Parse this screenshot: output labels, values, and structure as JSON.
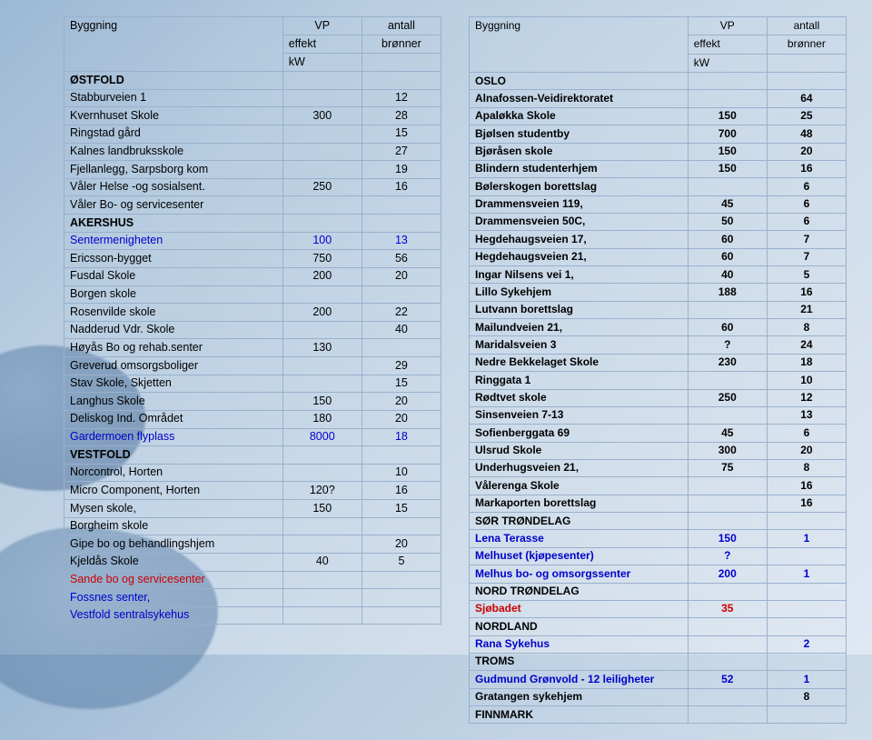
{
  "headers": {
    "byggning": "Byggning",
    "vp1": "VP",
    "vp2": "effekt",
    "vp3": "kW",
    "ant1": "antall",
    "ant2": "brønner"
  },
  "left": [
    {
      "name": "ØSTFOLD",
      "cls": "section"
    },
    {
      "name": "Stabburveien 1",
      "wells": "12"
    },
    {
      "name": "Kvernhuset Skole",
      "vp": "300",
      "wells": "28"
    },
    {
      "name": "Ringstad gård",
      "wells": "15"
    },
    {
      "name": "Kalnes landbruksskole",
      "wells": "27"
    },
    {
      "name": "Fjellanlegg, Sarpsborg kom",
      "wells": "19"
    },
    {
      "name": "Våler Helse -og sosialsent.",
      "vp": "250",
      "wells": "16"
    },
    {
      "name": "Våler Bo- og servicesenter"
    },
    {
      "name": "AKERSHUS",
      "cls": "section"
    },
    {
      "name": "Sentermenigheten",
      "vp": "100",
      "wells": "13",
      "cls": "blue"
    },
    {
      "name": "Ericsson-bygget",
      "vp": "750",
      "wells": "56"
    },
    {
      "name": "Fusdal Skole",
      "vp": "200",
      "wells": "20"
    },
    {
      "name": "Borgen skole"
    },
    {
      "name": "Rosenvilde skole",
      "vp": "200",
      "wells": "22"
    },
    {
      "name": "Nadderud Vdr. Skole",
      "wells": "40"
    },
    {
      "name": "Høyås Bo og rehab.senter",
      "vp": "130"
    },
    {
      "name": "Greverud omsorgsboliger",
      "wells": "29"
    },
    {
      "name": "Stav Skole, Skjetten",
      "wells": "15"
    },
    {
      "name": "Langhus Skole",
      "vp": "150",
      "wells": "20"
    },
    {
      "name": "Deliskog Ind. Området",
      "vp": "180",
      "wells": "20"
    },
    {
      "name": "Gardermoen flyplass",
      "vp": "8000",
      "wells": "18",
      "cls": "blue"
    },
    {
      "name": "VESTFOLD",
      "cls": "section"
    },
    {
      "name": "Norcontrol, Horten",
      "wells": "10"
    },
    {
      "name": "Micro Component, Horten",
      "vp": "120?",
      "wells": "16"
    },
    {
      "name": "Mysen skole,",
      "vp": "150",
      "wells": "15"
    },
    {
      "name": "Borgheim skole"
    },
    {
      "name": "Gipe bo og behandlingshjem",
      "wells": "20"
    },
    {
      "name": "Kjeldås Skole",
      "vp": "40",
      "wells": "5"
    },
    {
      "name": "Sande bo og servicesenter",
      "cls": "red"
    },
    {
      "name": "Fossnes senter,",
      "cls": "blue"
    },
    {
      "name": "Vestfold sentralsykehus",
      "cls": "blue"
    }
  ],
  "right": [
    {
      "name": "OSLO",
      "cls": "bold"
    },
    {
      "name": "Alnafossen-Veidirektoratet",
      "wells": "64",
      "cls": "bold"
    },
    {
      "name": "Apaløkka Skole",
      "vp": "150",
      "wells": "25",
      "cls": "bold"
    },
    {
      "name": "Bjølsen studentby",
      "vp": "700",
      "wells": "48",
      "cls": "bold"
    },
    {
      "name": "Bjøråsen skole",
      "vp": "150",
      "wells": "20",
      "cls": "bold"
    },
    {
      "name": "Blindern studenterhjem",
      "vp": "150",
      "wells": "16",
      "cls": "bold"
    },
    {
      "name": "Bølerskogen borettslag",
      "wells": "6",
      "cls": "bold"
    },
    {
      "name": "Drammensveien 119,",
      "vp": "45",
      "wells": "6",
      "cls": "bold"
    },
    {
      "name": "Drammensveien 50C,",
      "vp": "50",
      "wells": "6",
      "cls": "bold"
    },
    {
      "name": "Hegdehaugsveien 17,",
      "vp": "60",
      "wells": "7",
      "cls": "bold"
    },
    {
      "name": "Hegdehaugsveien 21,",
      "vp": "60",
      "wells": "7",
      "cls": "bold"
    },
    {
      "name": "Ingar Nilsens vei 1,",
      "vp": "40",
      "wells": "5",
      "cls": "bold"
    },
    {
      "name": "Lillo Sykehjem",
      "vp": "188",
      "wells": "16",
      "cls": "bold"
    },
    {
      "name": "Lutvann borettslag",
      "wells": "21",
      "cls": "bold"
    },
    {
      "name": "Mailundveien 21,",
      "vp": "60",
      "wells": "8",
      "cls": "bold"
    },
    {
      "name": "Maridalsveien 3",
      "vp": "?",
      "wells": "24",
      "cls": "bold"
    },
    {
      "name": "Nedre Bekkelaget Skole",
      "vp": "230",
      "wells": "18",
      "cls": "bold"
    },
    {
      "name": "Ringgata 1",
      "wells": "10",
      "cls": "bold"
    },
    {
      "name": "Rødtvet skole",
      "vp": "250",
      "wells": "12",
      "cls": "bold"
    },
    {
      "name": "Sinsenveien 7-13",
      "wells": "13",
      "cls": "bold"
    },
    {
      "name": "Sofienberggata 69",
      "vp": "45",
      "wells": "6",
      "cls": "bold"
    },
    {
      "name": "Ulsrud Skole",
      "vp": "300",
      "wells": "20",
      "cls": "bold"
    },
    {
      "name": "Underhugsveien 21,",
      "vp": "75",
      "wells": "8",
      "cls": "bold"
    },
    {
      "name": "Vålerenga Skole",
      "wells": "16",
      "cls": "bold"
    },
    {
      "name": "Markaporten borettslag",
      "wells": "16",
      "cls": "bold"
    },
    {
      "name": "SØR TRØNDELAG",
      "cls": "bold"
    },
    {
      "name": "Lena Terasse",
      "vp": "150",
      "wells": "1",
      "cls": "bold blue"
    },
    {
      "name": "Melhuset (kjøpesenter)",
      "vp": "?",
      "cls": "bold blue"
    },
    {
      "name": "Melhus bo- og omsorgssenter",
      "vp": "200",
      "wells": "1",
      "cls": "bold blue"
    },
    {
      "name": "NORD TRØNDELAG",
      "cls": "bold"
    },
    {
      "name": "Sjøbadet",
      "vp": "35",
      "cls": "bold red"
    },
    {
      "name": "NORDLAND",
      "cls": "bold"
    },
    {
      "name": "Rana  Sykehus",
      "wells": "2",
      "cls": "bold blue"
    },
    {
      "name": "TROMS",
      "cls": "bold"
    },
    {
      "name": "Gudmund Grønvold - 12 leiligheter",
      "vp": "52",
      "wells": "1",
      "cls": "bold blue"
    },
    {
      "name": "Gratangen sykehjem",
      "wells": "8",
      "cls": "bold"
    },
    {
      "name": "FINNMARK",
      "cls": "bold"
    }
  ]
}
